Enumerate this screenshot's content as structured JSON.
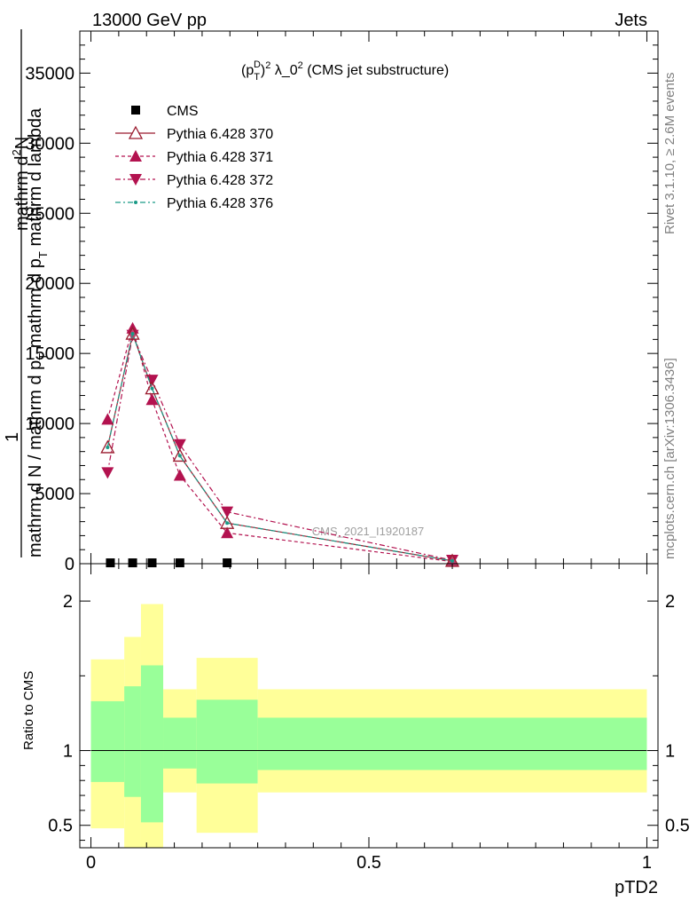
{
  "header": {
    "left": "13000 GeV pp",
    "right": "Jets"
  },
  "side_labels": {
    "rivet": "Rivet 3.1.10, ≥ 2.6M events",
    "mcplots": "mcplots.cern.ch [arXiv:1306.3436]"
  },
  "colors": {
    "cms": "#000000",
    "p370": "#9a1b2e",
    "p371": "#b3124f",
    "p372": "#b3124f",
    "p376": "#1a9a86",
    "band_inner": "#99ff99",
    "band_outer": "#ffff99"
  },
  "chart_data": [
    {
      "type": "line",
      "title_main": "(p",
      "title_sub": "T",
      "title_sup": "D",
      "title_rest": ")",
      "title_sup2": "2",
      "title_tail": " λ_0",
      "title_sup3": "2",
      "title_end": " (CMS jet substructure)",
      "ylabel": "1 / mathrm d N / mathrm d p_T mathrm d^2N / mathrm d p_T mathrm d lambda",
      "ylabel_parts": {
        "top_num": "mathrm d",
        "top_sup": "2",
        "top_n": "N",
        "one": "1",
        "bottom": "mathrm d N / mathrm d p",
        "bottom_sub": "T",
        "bottom_tail": " mathrm d p",
        "bottom_sub2": "T",
        "bottom_end": " mathrm d lambda"
      },
      "ylim": [
        0,
        38000
      ],
      "xlim": [
        -0.02,
        1.02
      ],
      "yticks": [
        0,
        5000,
        10000,
        15000,
        20000,
        25000,
        30000,
        35000
      ],
      "ytick_labels": [
        "0",
        "5000",
        "10000",
        "15000",
        "20000",
        "25000",
        "30000",
        "35000"
      ],
      "watermark": "CMS_2021_I1920187",
      "legend_position": "top-left",
      "series": [
        {
          "name": "CMS",
          "marker": "square",
          "x": [
            0.035,
            0.075,
            0.11,
            0.16,
            0.245
          ],
          "y": [
            60,
            60,
            60,
            60,
            60
          ]
        },
        {
          "name": "Pythia 6.428 370",
          "marker": "triangle-up-open",
          "line": "solid",
          "x": [
            0.03,
            0.075,
            0.11,
            0.16,
            0.245,
            0.65
          ],
          "y": [
            8300,
            16400,
            12500,
            7700,
            2900,
            200
          ]
        },
        {
          "name": "Pythia 6.428 371",
          "marker": "triangle-up",
          "line": "dashed",
          "x": [
            0.03,
            0.075,
            0.11,
            0.16,
            0.245,
            0.65
          ],
          "y": [
            10300,
            16800,
            11700,
            6300,
            2200,
            150
          ]
        },
        {
          "name": "Pythia 6.428 372",
          "marker": "triangle-down",
          "line": "dashdot",
          "x": [
            0.03,
            0.075,
            0.11,
            0.16,
            0.245,
            0.65
          ],
          "y": [
            6500,
            16300,
            13100,
            8500,
            3700,
            250
          ]
        },
        {
          "name": "Pythia 6.428 376",
          "marker": "dot",
          "line": "dashdot",
          "x": [
            0.03,
            0.075,
            0.11,
            0.16,
            0.245,
            0.65
          ],
          "y": [
            8300,
            16400,
            12500,
            7700,
            2900,
            200
          ]
        }
      ]
    },
    {
      "type": "area",
      "ylabel": "Ratio to CMS",
      "xlabel": "pTD2",
      "ylim": [
        0.35,
        2.25
      ],
      "xlim": [
        -0.02,
        1.02
      ],
      "yticks": [
        0.5,
        1,
        2
      ],
      "ytick_labels": [
        "0.5",
        "1",
        "2"
      ],
      "xticks": [
        0,
        0.5,
        1
      ],
      "xtick_labels": [
        "0",
        "0.5",
        "1"
      ],
      "bins": [
        {
          "x0": 0.0,
          "x1": 0.06,
          "inner": [
            0.79,
            1.33
          ],
          "outer": [
            0.48,
            1.61
          ]
        },
        {
          "x0": 0.06,
          "x1": 0.09,
          "inner": [
            0.69,
            1.43
          ],
          "outer": [
            0.3,
            1.76
          ]
        },
        {
          "x0": 0.09,
          "x1": 0.13,
          "inner": [
            0.52,
            1.57
          ],
          "outer": [
            0.3,
            1.98
          ]
        },
        {
          "x0": 0.13,
          "x1": 0.19,
          "inner": [
            0.88,
            1.22
          ],
          "outer": [
            0.72,
            1.41
          ]
        },
        {
          "x0": 0.19,
          "x1": 0.3,
          "inner": [
            0.78,
            1.34
          ],
          "outer": [
            0.45,
            1.62
          ]
        },
        {
          "x0": 0.3,
          "x1": 1.0,
          "inner": [
            0.87,
            1.22
          ],
          "outer": [
            0.72,
            1.41
          ]
        }
      ]
    }
  ]
}
